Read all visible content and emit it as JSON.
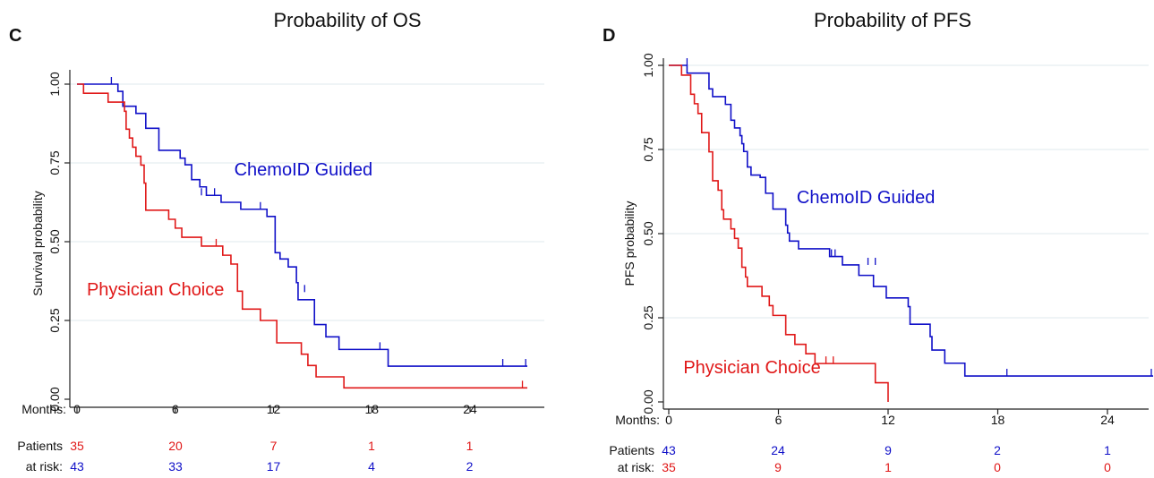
{
  "chart_data": [
    {
      "type": "line",
      "step": "post",
      "panel_letter": "C",
      "title": "Probability of OS",
      "ylabel": "Survival probability",
      "xlabel": "Months:",
      "xlim": [
        0,
        27.5
      ],
      "ylim": [
        0,
        1.04
      ],
      "x_ticks": [
        0,
        6,
        12,
        18,
        24
      ],
      "y_ticks": [
        0,
        0.25,
        0.5,
        0.75,
        1
      ],
      "y_tick_labels": [
        "0.00",
        "0.25",
        "0.50",
        "0.75",
        "1.00"
      ],
      "grid": "horizontal",
      "series": [
        {
          "name": "ChemoID Guided",
          "color": "#1010c8",
          "label_anchor": [
            9.6,
            0.71
          ],
          "steps": [
            [
              0,
              1.0
            ],
            [
              2.5,
              0.977
            ],
            [
              2.8,
              0.93
            ],
            [
              3.6,
              0.907
            ],
            [
              4.2,
              0.86
            ],
            [
              5.0,
              0.79
            ],
            [
              6.3,
              0.765
            ],
            [
              6.6,
              0.744
            ],
            [
              7.0,
              0.697
            ],
            [
              7.5,
              0.674
            ],
            [
              7.9,
              0.647
            ],
            [
              8.2,
              0.647
            ],
            [
              8.8,
              0.625
            ],
            [
              10.0,
              0.603
            ],
            [
              11.6,
              0.58
            ],
            [
              12.1,
              0.465
            ],
            [
              12.4,
              0.445
            ],
            [
              12.9,
              0.42
            ],
            [
              13.4,
              0.37
            ],
            [
              13.5,
              0.316
            ],
            [
              14.5,
              0.237
            ],
            [
              15.2,
              0.198
            ],
            [
              16.0,
              0.158
            ],
            [
              19.0,
              0.105
            ],
            [
              27.5,
              0.105
            ]
          ],
          "censors": [
            [
              2.1,
              1.0
            ],
            [
              7.6,
              0.647
            ],
            [
              8.4,
              0.647
            ],
            [
              11.2,
              0.603
            ],
            [
              13.9,
              0.34
            ],
            [
              18.5,
              0.158
            ],
            [
              26.0,
              0.105
            ],
            [
              27.4,
              0.105
            ]
          ]
        },
        {
          "name": "Physician Choice",
          "color": "#e01818",
          "label_anchor": [
            0.6,
            0.33
          ],
          "steps": [
            [
              0,
              1.0
            ],
            [
              0.4,
              0.971
            ],
            [
              1.9,
              0.943
            ],
            [
              2.9,
              0.914
            ],
            [
              3.0,
              0.857
            ],
            [
              3.2,
              0.829
            ],
            [
              3.4,
              0.8
            ],
            [
              3.6,
              0.771
            ],
            [
              3.9,
              0.743
            ],
            [
              4.1,
              0.686
            ],
            [
              4.2,
              0.6
            ],
            [
              5.6,
              0.571
            ],
            [
              6.0,
              0.543
            ],
            [
              6.4,
              0.514
            ],
            [
              7.6,
              0.486
            ],
            [
              8.9,
              0.457
            ],
            [
              9.4,
              0.429
            ],
            [
              9.8,
              0.343
            ],
            [
              10.1,
              0.286
            ],
            [
              11.2,
              0.25
            ],
            [
              12.2,
              0.179
            ],
            [
              13.7,
              0.143
            ],
            [
              14.1,
              0.107
            ],
            [
              14.6,
              0.071
            ],
            [
              16.3,
              0.036
            ],
            [
              27.5,
              0.036
            ]
          ],
          "censors": [
            [
              8.5,
              0.486
            ],
            [
              27.2,
              0.036
            ]
          ]
        }
      ],
      "risk_table": {
        "labels": [
          "Patients",
          "at risk:"
        ],
        "rows": [
          {
            "color": "#e01818",
            "counts": [
              "35",
              "20",
              "7",
              "1",
              "1"
            ]
          },
          {
            "color": "#1010c8",
            "counts": [
              "43",
              "33",
              "17",
              "4",
              "2"
            ]
          }
        ]
      }
    },
    {
      "type": "line",
      "step": "post",
      "panel_letter": "D",
      "title": "Probability of PFS",
      "ylabel": "PFS probability",
      "xlabel": "Months:",
      "xlim": [
        0,
        26.5
      ],
      "ylim": [
        0,
        1.02
      ],
      "x_ticks": [
        0,
        6,
        12,
        18,
        24
      ],
      "y_ticks": [
        0,
        0.25,
        0.5,
        0.75,
        1
      ],
      "y_tick_labels": [
        "0.00",
        "0.25",
        "0.50",
        "0.75",
        "1.00"
      ],
      "grid": "horizontal",
      "series": [
        {
          "name": "ChemoID Guided",
          "color": "#1010c8",
          "label_anchor": [
            7.0,
            0.59
          ],
          "steps": [
            [
              0,
              1.0
            ],
            [
              1.0,
              0.977
            ],
            [
              2.2,
              0.93
            ],
            [
              2.4,
              0.907
            ],
            [
              3.1,
              0.884
            ],
            [
              3.4,
              0.837
            ],
            [
              3.6,
              0.814
            ],
            [
              3.9,
              0.791
            ],
            [
              4.0,
              0.767
            ],
            [
              4.1,
              0.744
            ],
            [
              4.3,
              0.698
            ],
            [
              4.5,
              0.674
            ],
            [
              5.0,
              0.667
            ],
            [
              5.3,
              0.62
            ],
            [
              5.7,
              0.573
            ],
            [
              6.4,
              0.525
            ],
            [
              6.5,
              0.502
            ],
            [
              6.6,
              0.478
            ],
            [
              7.1,
              0.455
            ],
            [
              8.8,
              0.432
            ],
            [
              9.5,
              0.407
            ],
            [
              10.4,
              0.376
            ],
            [
              11.2,
              0.343
            ],
            [
              11.9,
              0.309
            ],
            [
              13.1,
              0.283
            ],
            [
              13.2,
              0.231
            ],
            [
              14.3,
              0.194
            ],
            [
              14.4,
              0.154
            ],
            [
              15.1,
              0.115
            ],
            [
              16.2,
              0.077
            ],
            [
              26.5,
              0.077
            ]
          ],
          "censors": [
            [
              1.0,
              1.0
            ],
            [
              8.9,
              0.432
            ],
            [
              9.1,
              0.432
            ],
            [
              10.9,
              0.407
            ],
            [
              11.3,
              0.407
            ],
            [
              18.5,
              0.077
            ],
            [
              26.4,
              0.077
            ]
          ]
        },
        {
          "name": "Physician Choice",
          "color": "#e01818",
          "label_anchor": [
            0.8,
            0.085
          ],
          "steps": [
            [
              0,
              1.0
            ],
            [
              0.7,
              0.971
            ],
            [
              1.2,
              0.914
            ],
            [
              1.4,
              0.886
            ],
            [
              1.6,
              0.857
            ],
            [
              1.8,
              0.8
            ],
            [
              2.2,
              0.743
            ],
            [
              2.4,
              0.657
            ],
            [
              2.7,
              0.629
            ],
            [
              2.9,
              0.571
            ],
            [
              3.0,
              0.543
            ],
            [
              3.4,
              0.514
            ],
            [
              3.6,
              0.486
            ],
            [
              3.8,
              0.457
            ],
            [
              4.0,
              0.4
            ],
            [
              4.2,
              0.371
            ],
            [
              4.3,
              0.343
            ],
            [
              5.1,
              0.314
            ],
            [
              5.5,
              0.286
            ],
            [
              5.7,
              0.257
            ],
            [
              6.4,
              0.2
            ],
            [
              6.9,
              0.171
            ],
            [
              7.5,
              0.143
            ],
            [
              8.0,
              0.114
            ],
            [
              11.3,
              0.057
            ],
            [
              12.0,
              0.0
            ]
          ],
          "censors": [
            [
              8.6,
              0.114
            ],
            [
              9.0,
              0.114
            ]
          ]
        }
      ],
      "risk_table": {
        "labels": [
          "Patients",
          "at risk:"
        ],
        "rows": [
          {
            "color": "#1010c8",
            "counts": [
              "43",
              "24",
              "9",
              "2",
              "1"
            ]
          },
          {
            "color": "#e01818",
            "counts": [
              "35",
              "9",
              "1",
              "0",
              "0"
            ]
          }
        ]
      }
    }
  ]
}
